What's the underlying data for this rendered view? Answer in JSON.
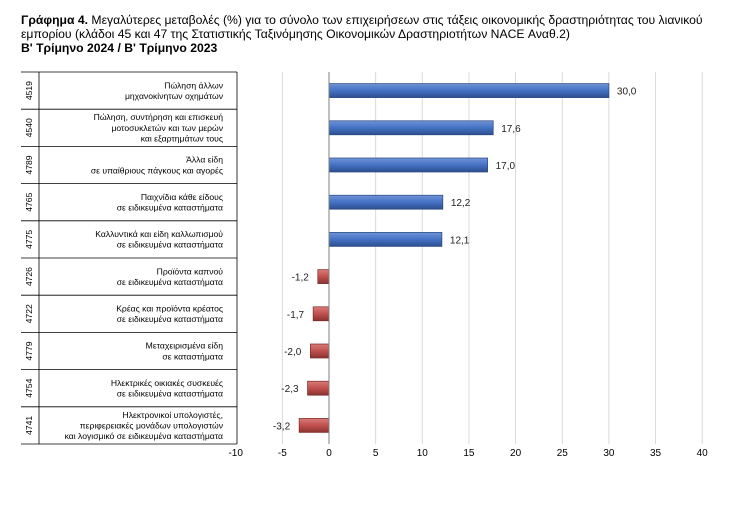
{
  "title": {
    "prefix": "Γράφημα 4.",
    "text": "Μεγαλύτερες μεταβολές (%) για το σύνολο των επιχειρήσεων στις τάξεις οικονομικής δραστηριότητας του λιανικού εμπορίου (κλάδοι 45 και 47 της Στατιστικής Ταξινόμησης Οικονομικών Δραστηριοτήτων NACE Αναθ.2)",
    "subtitle": "Β' Τρίμηνο 2024 / Β' Τρίμηνο 2023"
  },
  "colors": {
    "positive": "#4472c4",
    "negative": "#c0504d",
    "grid": "#d9d9d9"
  },
  "chart_data": {
    "type": "bar",
    "orientation": "horizontal",
    "xlim": [
      -10,
      40
    ],
    "ticks": [
      -10,
      -5,
      0,
      5,
      10,
      15,
      20,
      25,
      30,
      35,
      40
    ],
    "grid": true,
    "categories": [
      {
        "code": "4519",
        "label": [
          "Πώληση άλλων",
          "μηχανοκίνητων οχημάτων"
        ],
        "value": 30.0,
        "display": "30,0"
      },
      {
        "code": "4540",
        "label": [
          "Πώληση, συντήρηση και επισκευή",
          "μοτοσυκλετών και των μερών",
          "και εξαρτημάτων τους"
        ],
        "value": 17.6,
        "display": "17,6"
      },
      {
        "code": "4789",
        "label": [
          "Άλλα είδη",
          "σε υπαίθριους πάγκους και αγορές"
        ],
        "value": 17.0,
        "display": "17,0"
      },
      {
        "code": "4765",
        "label": [
          "Παιχνίδια κάθε είδους",
          "σε ειδικευμένα καταστήματα"
        ],
        "value": 12.2,
        "display": "12,2"
      },
      {
        "code": "4775",
        "label": [
          "Καλλυντικά και είδη καλλωπισμού",
          "σε ειδικευμένα καταστήματα"
        ],
        "value": 12.1,
        "display": "12,1"
      },
      {
        "code": "4726",
        "label": [
          "Προϊόντα καπνού",
          "σε ειδικευμένα καταστήματα"
        ],
        "value": -1.2,
        "display": "-1,2"
      },
      {
        "code": "4722",
        "label": [
          "Κρέας και προϊόντα κρέατος",
          "σε ειδικευμένα καταστήματα"
        ],
        "value": -1.7,
        "display": "-1,7"
      },
      {
        "code": "4779",
        "label": [
          "Μεταχειρισμένα είδη",
          "σε καταστήματα"
        ],
        "value": -2.0,
        "display": "-2,0"
      },
      {
        "code": "4754",
        "label": [
          "Ηλεκτρικές οικιακές συσκευές",
          "σε ειδικευμένα καταστήματα"
        ],
        "value": -2.3,
        "display": "-2,3"
      },
      {
        "code": "4741",
        "label": [
          "Ηλεκτρονικοί υπολογιστές,",
          "περιφερειακές μονάδων υπολογιστών",
          "και λογισμικό σε ειδικευμένα καταστήματα"
        ],
        "value": -3.2,
        "display": "-3,2"
      }
    ]
  }
}
